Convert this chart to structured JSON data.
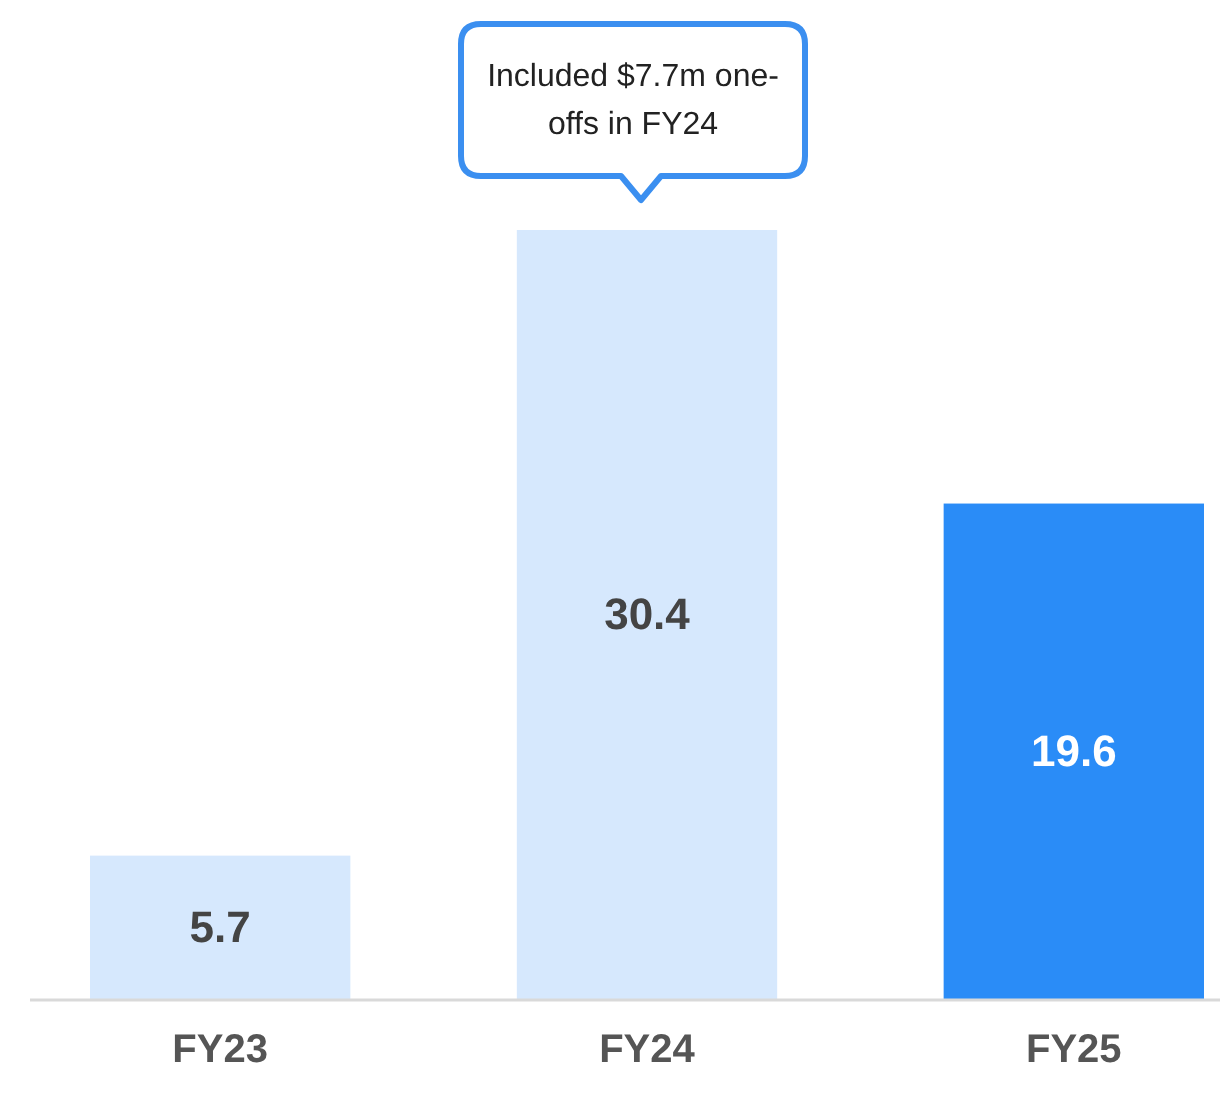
{
  "chart_data": {
    "type": "bar",
    "categories": [
      "FY23",
      "FY24",
      "FY25"
    ],
    "values": [
      5.7,
      30.4,
      19.6
    ],
    "colors": [
      "#d6e8fd",
      "#d6e8fd",
      "#2a8cf7"
    ],
    "data_labels": true,
    "annotations": [
      {
        "text": "Included $7.7m one-offs in FY24",
        "x": "FY24",
        "y": 30.4
      }
    ]
  }
}
